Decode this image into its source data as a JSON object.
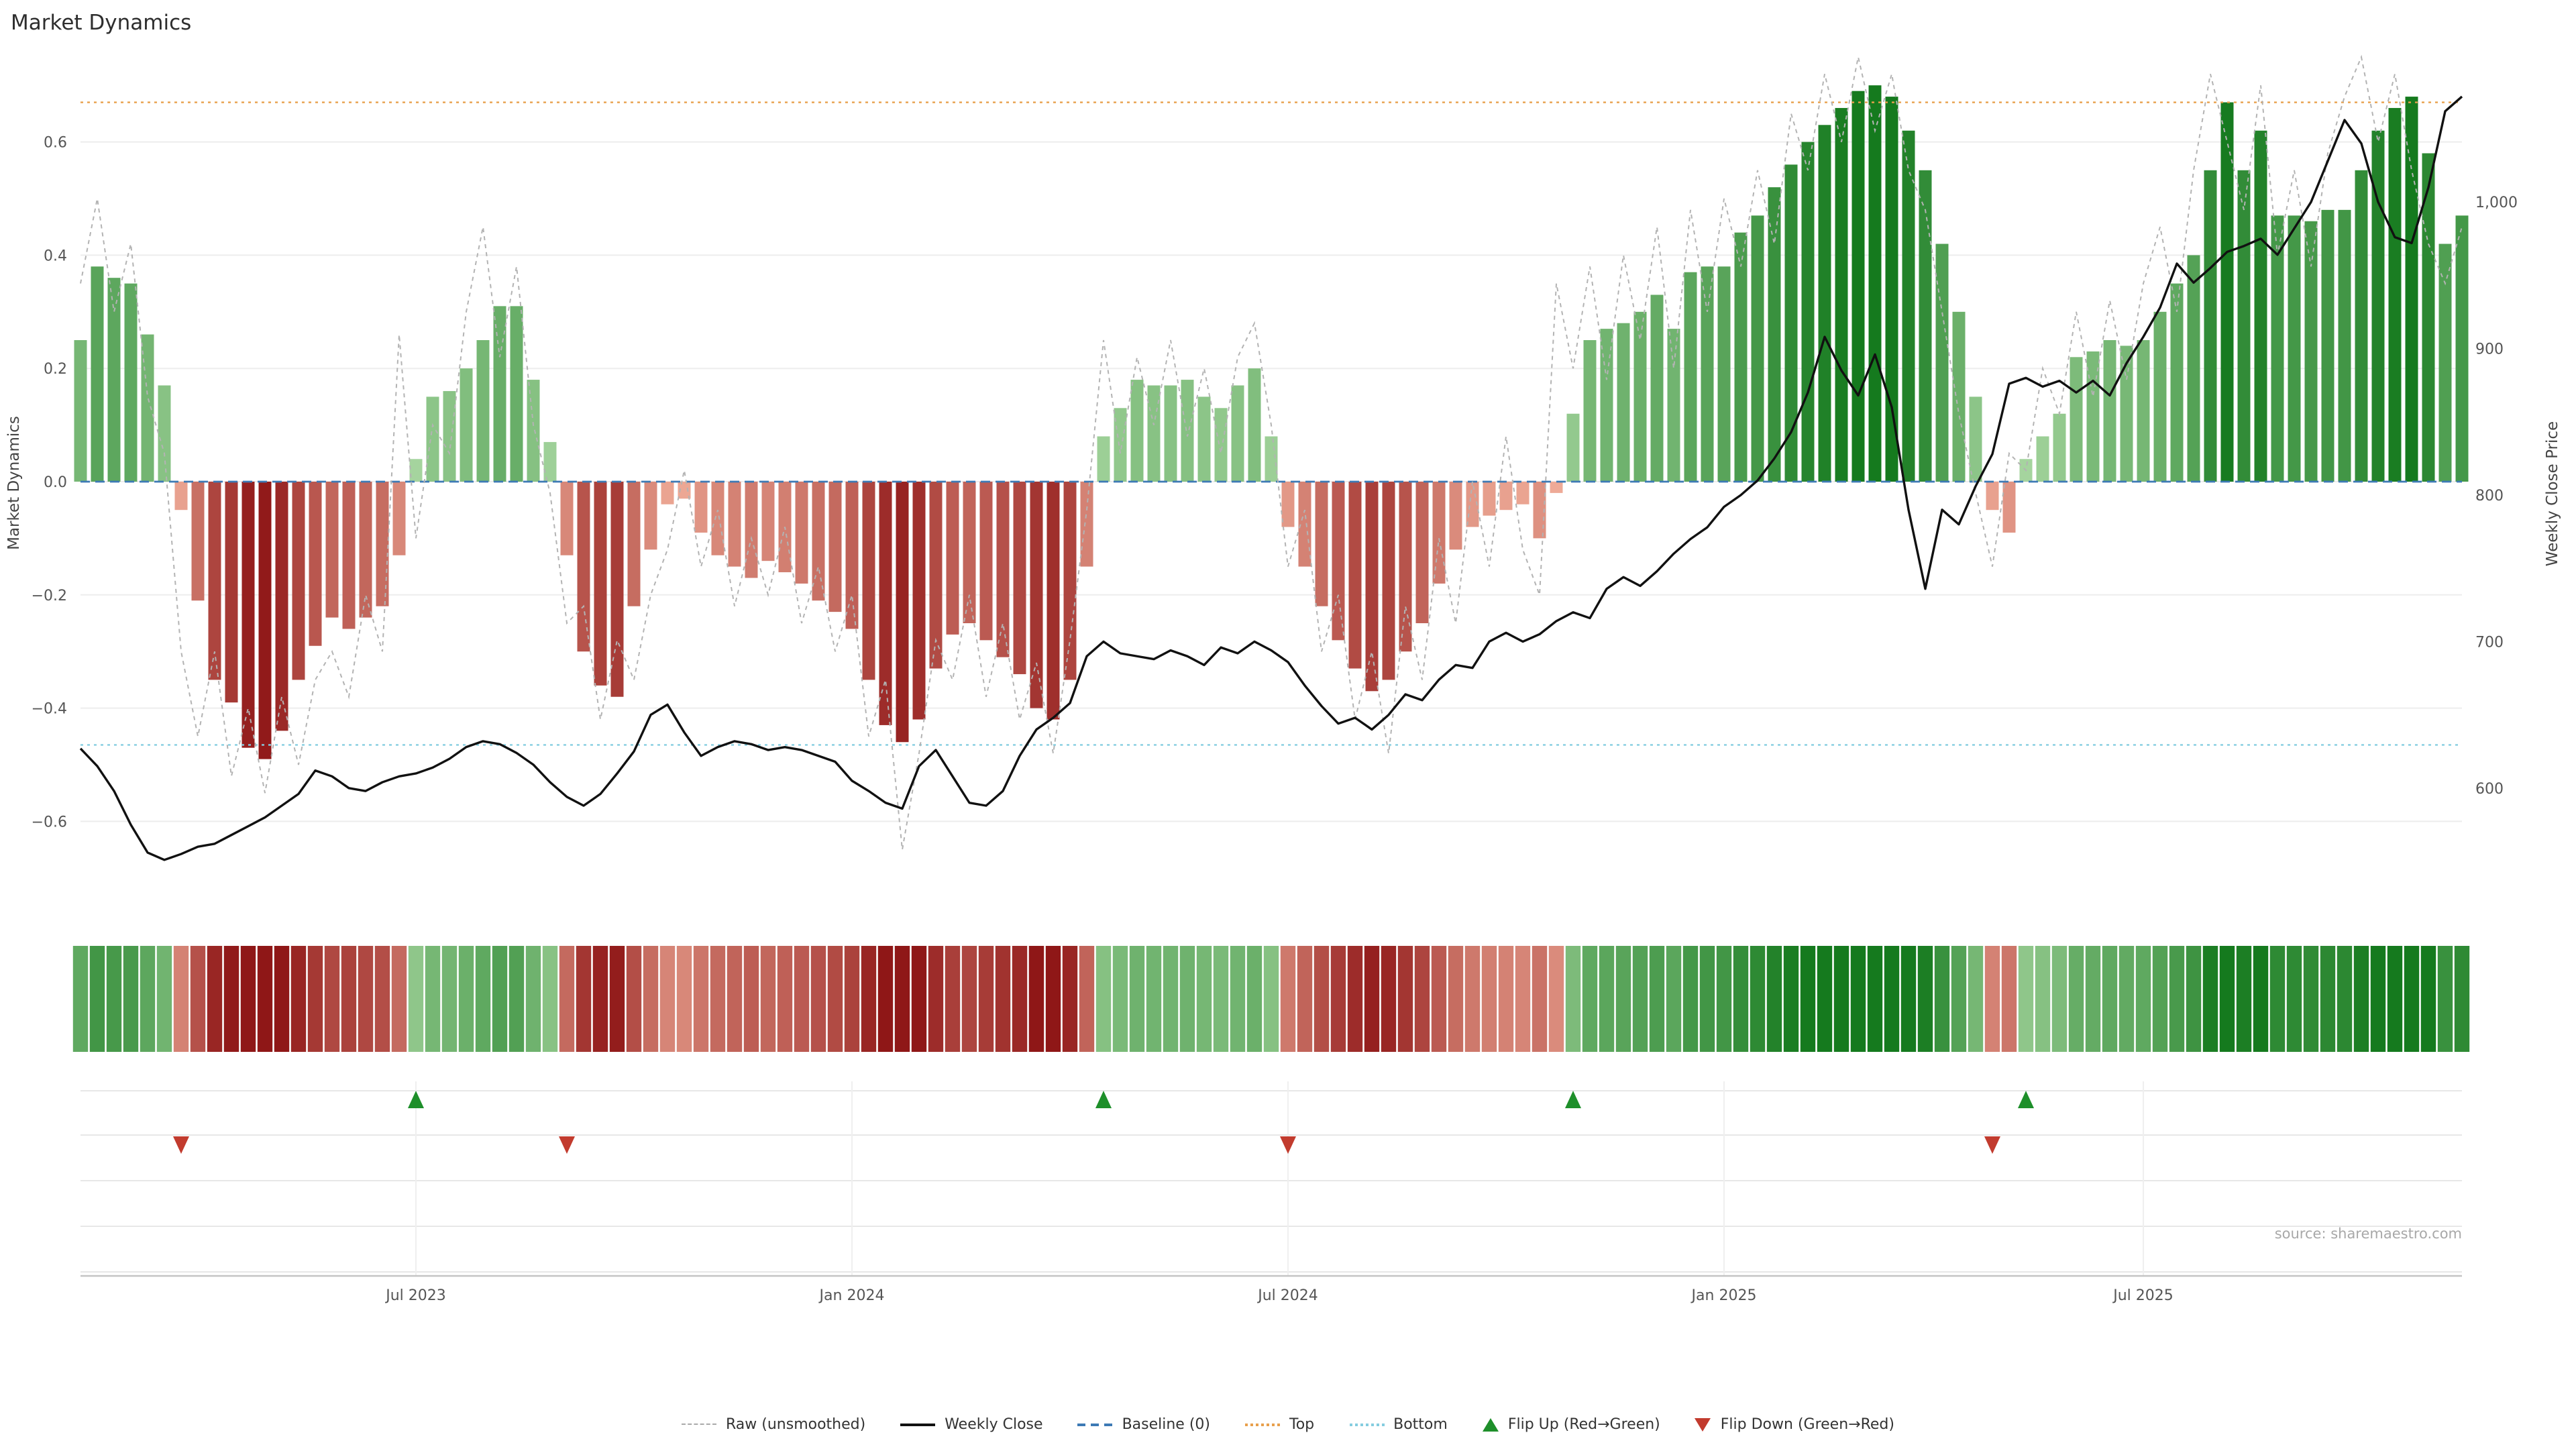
{
  "title": "Market Dynamics",
  "source": "source: sharemaestro.com",
  "axes": {
    "left_label": "Market Dynamics",
    "right_label": "Weekly Close Price"
  },
  "colors": {
    "green_light": "#aedaa6",
    "green_dark": "#157a1e",
    "red_light": "#f2b09c",
    "red_dark": "#8f1717",
    "top_line": "#e8a04c",
    "bottom_line": "#85cde0",
    "baseline": "#3d7ab5",
    "raw_line": "#b3b3b3",
    "close_line": "#111111",
    "flip_up": "#1e8f2a",
    "flip_down": "#c23b2e",
    "grid": "#ededed",
    "axis_spine": "#c4c4c4"
  },
  "legend": {
    "items": [
      {
        "name": "raw",
        "label": "Raw (unsmoothed)"
      },
      {
        "name": "weekly-close",
        "label": "Weekly Close"
      },
      {
        "name": "baseline",
        "label": "Baseline (0)"
      },
      {
        "name": "top",
        "label": "Top"
      },
      {
        "name": "bottom",
        "label": "Bottom"
      },
      {
        "name": "flip-up",
        "label": "Flip Up (Red→Green)"
      },
      {
        "name": "flip-down",
        "label": "Flip Down (Green→Red)"
      }
    ]
  },
  "chart_data": {
    "type": "bar",
    "subtype": "bar+line combo, weekly",
    "n_points": 143,
    "x_unit": "week_index",
    "ylim_left": [
      -0.72,
      0.76
    ],
    "ylim_right": [
      555,
      1100
    ],
    "baseline": 0,
    "top_threshold": 0.67,
    "bottom_threshold": -0.465,
    "flip_up_weeks": [
      20,
      61,
      89,
      116
    ],
    "flip_down_weeks": [
      6,
      29,
      72,
      114
    ],
    "x_ticks": [
      {
        "i": 20,
        "label": "Jul 2023"
      },
      {
        "i": 46,
        "label": "Jan 2024"
      },
      {
        "i": 72,
        "label": "Jul 2024"
      },
      {
        "i": 98,
        "label": "Jan 2025"
      },
      {
        "i": 123,
        "label": "Jul 2025"
      }
    ],
    "left_ticks": [
      {
        "v": 0.6,
        "label": "0.6"
      },
      {
        "v": 0.4,
        "label": "0.4"
      },
      {
        "v": 0.2,
        "label": "0.2"
      },
      {
        "v": 0.0,
        "label": "0.0"
      },
      {
        "v": -0.2,
        "label": "−0.2"
      },
      {
        "v": -0.4,
        "label": "−0.4"
      },
      {
        "v": -0.6,
        "label": "−0.6"
      }
    ],
    "right_ticks": [
      {
        "v": 1000,
        "label": "1,000"
      },
      {
        "v": 900,
        "label": "900"
      },
      {
        "v": 800,
        "label": "800"
      },
      {
        "v": 700,
        "label": "700"
      },
      {
        "v": 600,
        "label": "600"
      }
    ],
    "series": [
      {
        "name": "Market Dynamics",
        "type": "bar",
        "axis": "left",
        "values": [
          0.25,
          0.38,
          0.36,
          0.35,
          0.26,
          0.17,
          -0.05,
          -0.21,
          -0.35,
          -0.39,
          -0.47,
          -0.49,
          -0.44,
          -0.35,
          -0.29,
          -0.24,
          -0.26,
          -0.24,
          -0.22,
          -0.13,
          0.04,
          0.15,
          0.16,
          0.2,
          0.25,
          0.31,
          0.31,
          0.18,
          0.07,
          -0.13,
          -0.3,
          -0.36,
          -0.38,
          -0.22,
          -0.12,
          -0.04,
          -0.03,
          -0.09,
          -0.13,
          -0.15,
          -0.17,
          -0.14,
          -0.16,
          -0.18,
          -0.21,
          -0.23,
          -0.26,
          -0.35,
          -0.43,
          -0.46,
          -0.42,
          -0.33,
          -0.27,
          -0.25,
          -0.28,
          -0.31,
          -0.34,
          -0.4,
          -0.42,
          -0.35,
          -0.15,
          0.08,
          0.13,
          0.18,
          0.17,
          0.17,
          0.18,
          0.15,
          0.13,
          0.17,
          0.2,
          0.08,
          -0.08,
          -0.15,
          -0.22,
          -0.28,
          -0.33,
          -0.37,
          -0.35,
          -0.3,
          -0.25,
          -0.18,
          -0.12,
          -0.08,
          -0.06,
          -0.05,
          -0.04,
          -0.1,
          -0.02,
          0.12,
          0.25,
          0.27,
          0.28,
          0.3,
          0.33,
          0.27,
          0.37,
          0.38,
          0.38,
          0.44,
          0.47,
          0.52,
          0.56,
          0.6,
          0.63,
          0.66,
          0.69,
          0.7,
          0.68,
          0.62,
          0.55,
          0.42,
          0.3,
          0.15,
          -0.05,
          -0.09,
          0.04,
          0.08,
          0.12,
          0.22,
          0.23,
          0.25,
          0.24,
          0.25,
          0.3,
          0.35,
          0.4,
          0.55,
          0.67,
          0.55,
          0.62,
          0.47,
          0.47,
          0.46,
          0.48,
          0.48,
          0.55,
          0.62,
          0.66,
          0.68,
          0.58,
          0.42,
          0.47
        ]
      },
      {
        "name": "Raw (unsmoothed)",
        "type": "line",
        "style": "dashed",
        "axis": "left",
        "values": [
          0.35,
          0.5,
          0.3,
          0.42,
          0.15,
          0.05,
          -0.3,
          -0.45,
          -0.3,
          -0.52,
          -0.4,
          -0.55,
          -0.38,
          -0.5,
          -0.35,
          -0.3,
          -0.38,
          -0.2,
          -0.3,
          0.26,
          -0.1,
          0.1,
          0.05,
          0.3,
          0.45,
          0.22,
          0.38,
          0.1,
          -0.02,
          -0.25,
          -0.22,
          -0.42,
          -0.28,
          -0.35,
          -0.2,
          -0.12,
          0.02,
          -0.15,
          -0.05,
          -0.22,
          -0.1,
          -0.2,
          -0.08,
          -0.25,
          -0.15,
          -0.3,
          -0.2,
          -0.45,
          -0.35,
          -0.65,
          -0.48,
          -0.28,
          -0.35,
          -0.2,
          -0.38,
          -0.25,
          -0.42,
          -0.32,
          -0.48,
          -0.28,
          -0.05,
          0.25,
          0.05,
          0.22,
          0.1,
          0.25,
          0.08,
          0.2,
          0.05,
          0.22,
          0.28,
          0.1,
          -0.15,
          -0.05,
          -0.3,
          -0.2,
          -0.42,
          -0.3,
          -0.48,
          -0.22,
          -0.35,
          -0.1,
          -0.25,
          0.0,
          -0.15,
          0.08,
          -0.12,
          -0.2,
          0.35,
          0.2,
          0.38,
          0.18,
          0.4,
          0.25,
          0.45,
          0.2,
          0.48,
          0.3,
          0.5,
          0.38,
          0.55,
          0.42,
          0.65,
          0.55,
          0.72,
          0.6,
          0.75,
          0.62,
          0.72,
          0.55,
          0.48,
          0.3,
          0.12,
          -0.02,
          -0.15,
          0.05,
          0.02,
          0.2,
          0.12,
          0.3,
          0.15,
          0.32,
          0.18,
          0.35,
          0.45,
          0.3,
          0.55,
          0.72,
          0.6,
          0.48,
          0.7,
          0.4,
          0.55,
          0.38,
          0.58,
          0.68,
          0.75,
          0.6,
          0.72,
          0.55,
          0.42,
          0.35,
          0.45
        ]
      },
      {
        "name": "Weekly Close",
        "type": "line",
        "axis": "right",
        "values": [
          627,
          615,
          598,
          575,
          556,
          551,
          555,
          560,
          562,
          568,
          574,
          580,
          588,
          596,
          612,
          608,
          600,
          598,
          604,
          608,
          610,
          614,
          620,
          628,
          632,
          630,
          624,
          616,
          604,
          594,
          588,
          596,
          610,
          625,
          650,
          657,
          638,
          622,
          628,
          632,
          630,
          626,
          628,
          626,
          622,
          618,
          605,
          598,
          590,
          586,
          615,
          626,
          608,
          590,
          588,
          598,
          622,
          640,
          648,
          658,
          690,
          700,
          692,
          690,
          688,
          694,
          690,
          684,
          696,
          692,
          700,
          694,
          686,
          670,
          656,
          644,
          648,
          640,
          650,
          664,
          660,
          674,
          684,
          682,
          700,
          706,
          700,
          705,
          714,
          720,
          716,
          736,
          744,
          738,
          748,
          760,
          770,
          778,
          792,
          800,
          810,
          825,
          843,
          870,
          908,
          885,
          868,
          896,
          860,
          790,
          736,
          790,
          780,
          806,
          828,
          876,
          880,
          874,
          878,
          870,
          878,
          868,
          890,
          908,
          928,
          958,
          945,
          955,
          966,
          970,
          975,
          964,
          982,
          1000,
          1028,
          1056,
          1040,
          1000,
          976,
          972,
          1010,
          1062,
          1072
        ]
      }
    ]
  }
}
